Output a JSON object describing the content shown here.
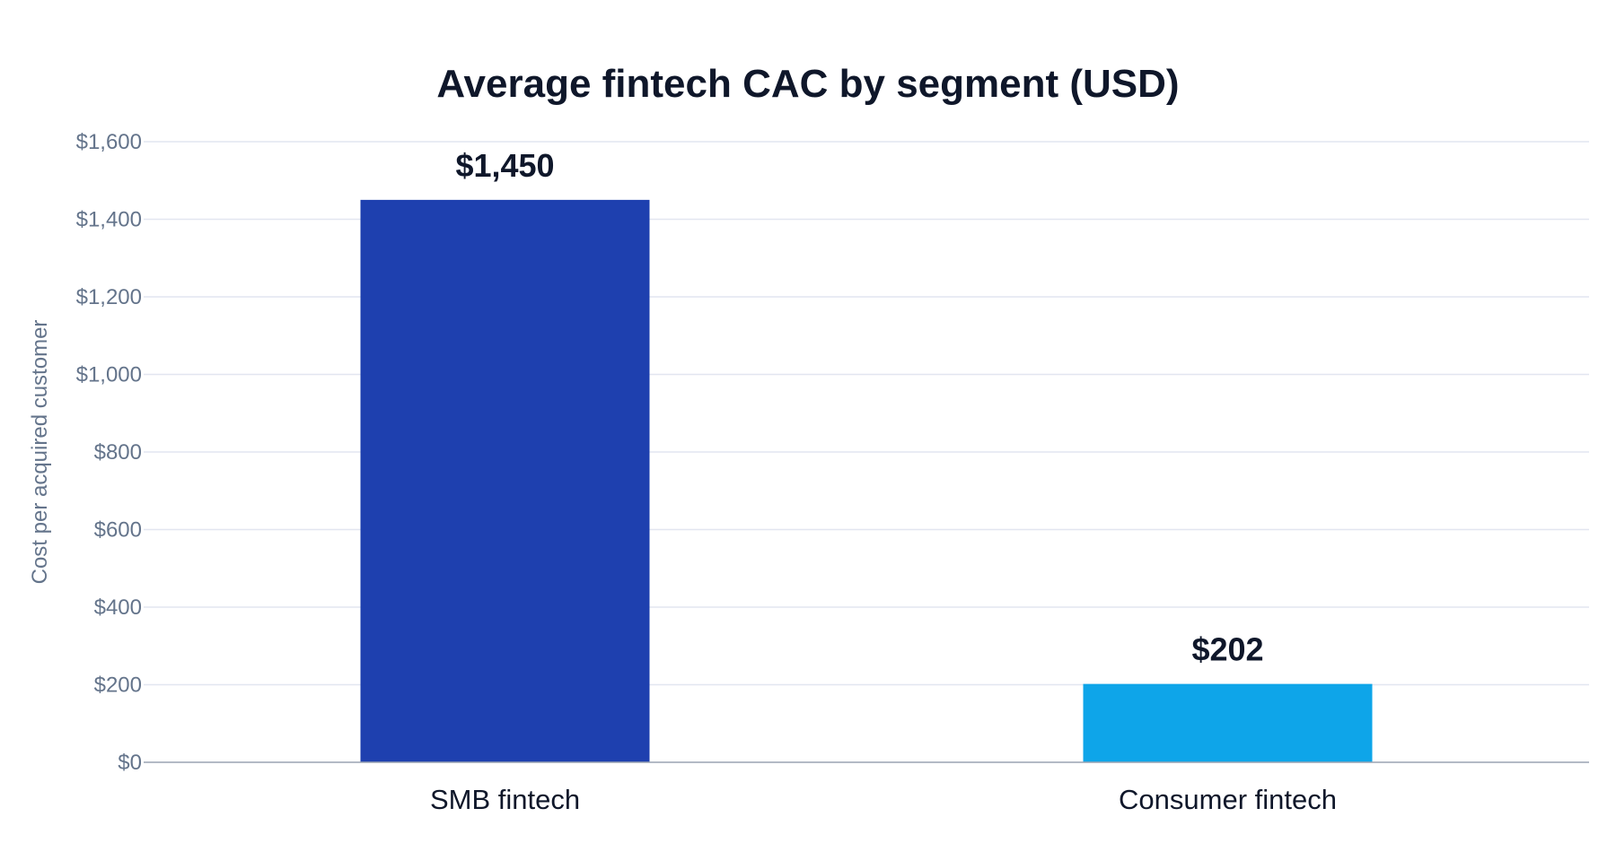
{
  "chart_data": {
    "type": "bar",
    "title": "Average fintech CAC by segment (USD)",
    "xlabel": "",
    "ylabel": "Cost per acquired customer",
    "categories": [
      "SMB fintech",
      "Consumer fintech"
    ],
    "values": [
      1450,
      202
    ],
    "data_labels": [
      "$1,450",
      "$202"
    ],
    "colors": [
      "#1e40af",
      "#0ea5e9"
    ],
    "ylim": [
      0,
      1600
    ],
    "y_ticks": [
      0,
      200,
      400,
      600,
      800,
      1000,
      1200,
      1400,
      1600
    ],
    "y_tick_labels": [
      "$0",
      "$200",
      "$400",
      "$600",
      "$800",
      "$1,000",
      "$1,200",
      "$1,400",
      "$1,600"
    ],
    "grid": true,
    "legend": "none"
  }
}
